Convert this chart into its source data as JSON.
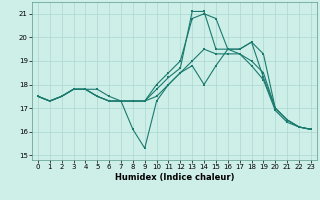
{
  "xlabel": "Humidex (Indice chaleur)",
  "background_color": "#ceeee8",
  "grid_color": "#aad8d0",
  "line_color": "#1a7a6e",
  "xlim": [
    -0.5,
    23.5
  ],
  "ylim": [
    14.8,
    21.5
  ],
  "yticks": [
    15,
    16,
    17,
    18,
    19,
    20,
    21
  ],
  "xticks": [
    0,
    1,
    2,
    3,
    4,
    5,
    6,
    7,
    8,
    9,
    10,
    11,
    12,
    13,
    14,
    15,
    16,
    17,
    18,
    19,
    20,
    21,
    22,
    23
  ],
  "lines": [
    [
      17.5,
      17.3,
      17.5,
      17.8,
      17.8,
      17.8,
      17.5,
      17.3,
      16.1,
      15.3,
      17.3,
      18.0,
      18.5,
      18.8,
      18.0,
      18.8,
      19.5,
      19.3,
      18.8,
      18.2,
      16.9,
      16.4,
      16.2,
      16.1
    ],
    [
      17.5,
      17.3,
      17.5,
      17.8,
      17.8,
      17.5,
      17.3,
      17.3,
      17.3,
      17.3,
      17.5,
      18.0,
      18.5,
      19.0,
      19.5,
      19.3,
      19.3,
      19.3,
      19.0,
      18.5,
      17.0,
      16.5,
      16.2,
      16.1
    ],
    [
      17.5,
      17.3,
      17.5,
      17.8,
      17.8,
      17.5,
      17.3,
      17.3,
      17.3,
      17.3,
      18.0,
      18.5,
      19.0,
      20.8,
      21.0,
      20.8,
      19.5,
      19.5,
      19.8,
      19.3,
      17.0,
      16.5,
      16.2,
      16.1
    ],
    [
      17.5,
      17.3,
      17.5,
      17.8,
      17.8,
      17.5,
      17.3,
      17.3,
      17.3,
      17.3,
      17.8,
      18.3,
      18.7,
      21.1,
      21.1,
      19.5,
      19.5,
      19.5,
      19.8,
      18.3,
      17.0,
      16.5,
      16.2,
      16.1
    ]
  ],
  "xlabel_fontsize": 6.0,
  "tick_fontsize": 5.0,
  "linewidth": 0.8,
  "markersize": 1.8
}
